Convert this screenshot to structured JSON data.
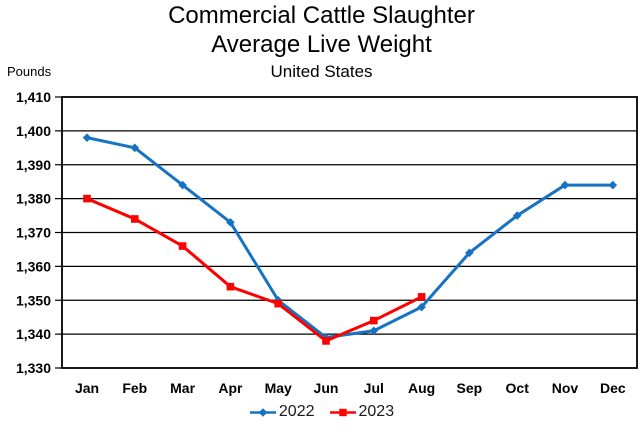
{
  "title": {
    "line1": "Commercial Cattle Slaughter",
    "line2": "Average Live Weight",
    "subtitle": "United States"
  },
  "axes": {
    "y_unit_label": "Pounds",
    "y_tick_labels": [
      "1,410",
      "1,400",
      "1,390",
      "1,380",
      "1,370",
      "1,360",
      "1,350",
      "1,340",
      "1,330"
    ],
    "x_tick_labels": [
      "Jan",
      "Feb",
      "Mar",
      "Apr",
      "May",
      "Jun",
      "Jul",
      "Aug",
      "Sep",
      "Oct",
      "Nov",
      "Dec"
    ]
  },
  "chart_data": {
    "type": "line",
    "title": "Commercial Cattle Slaughter Average Live Weight",
    "subtitle": "United States",
    "ylabel": "Pounds",
    "xlabel": "",
    "ylim": [
      1330,
      1410
    ],
    "y_tick_step": 10,
    "grid": "horizontal",
    "legend_position": "bottom",
    "categories": [
      "Jan",
      "Feb",
      "Mar",
      "Apr",
      "May",
      "Jun",
      "Jul",
      "Aug",
      "Sep",
      "Oct",
      "Nov",
      "Dec"
    ],
    "series": [
      {
        "name": "2022",
        "color": "#1673C4",
        "marker": "diamond",
        "values": [
          1398,
          1395,
          1384,
          1373,
          1350,
          1339,
          1341,
          1348,
          1364,
          1375,
          1384,
          1384
        ]
      },
      {
        "name": "2023",
        "color": "#FF0000",
        "marker": "square",
        "values": [
          1380,
          1374,
          1366,
          1354,
          1349,
          1338,
          1344,
          1351,
          null,
          null,
          null,
          null
        ]
      }
    ]
  }
}
